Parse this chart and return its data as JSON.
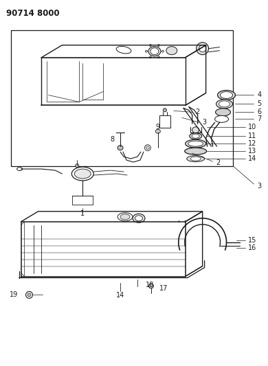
{
  "title": "90714 8000",
  "bg_color": "#ffffff",
  "line_color": "#1a1a1a",
  "gray_light": "#cccccc",
  "gray_mid": "#aaaaaa",
  "gray_dark": "#555555",
  "title_fontsize": 8.5,
  "label_fontsize": 7.0,
  "figsize": [
    3.9,
    5.33
  ],
  "dpi": 100
}
